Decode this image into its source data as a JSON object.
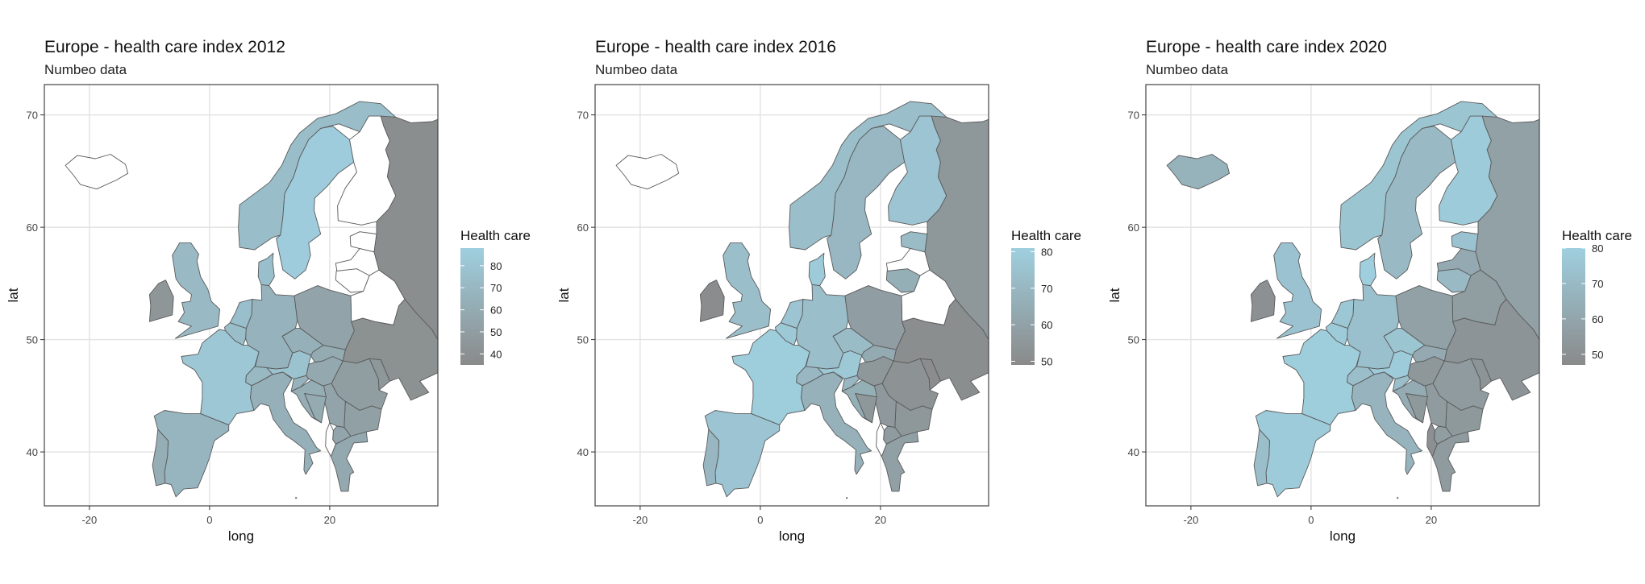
{
  "colors": {
    "high": "#9fcfdf",
    "low": "#8a8a8a",
    "border": "#555555",
    "missing": "#ffffff",
    "grid": "#e3e3e3",
    "panel_border": "#444444"
  },
  "axes": {
    "xlabel": "long",
    "ylabel": "lat",
    "xticks": [
      "-20",
      "0",
      "20"
    ],
    "yticks": [
      "40",
      "50",
      "60",
      "70"
    ]
  },
  "legend_title": "Health care",
  "panels": [
    {
      "title": "Europe - health care index 2012",
      "subtitle": "Numbeo data",
      "legend_ticks": [
        "80",
        "70",
        "60",
        "50",
        "40"
      ],
      "range": [
        35,
        88
      ],
      "values": {
        "Norway": 74,
        "Sweden": 86,
        "Finland": null,
        "Russia": 38,
        "Estonia": null,
        "Latvia": null,
        "Lithuania": null,
        "Belarus": null,
        "Poland": 55,
        "Ukraine": 40,
        "Germany": 66,
        "Denmark": 76,
        "UK": 72,
        "Ireland": 44,
        "France": 82,
        "Spain": 68,
        "Portugal": 62,
        "Italy": 64,
        "Switzerland": 70,
        "Austria": 78,
        "Czechia": 64,
        "Slovakia": 60,
        "Hungary": 58,
        "Romania": 50,
        "Bulgaria": 52,
        "Greece": 58,
        "Croatia": 62,
        "Serbia": 55,
        "Bosnia": 60,
        "Albania": null,
        "Macedonia": 56,
        "Belgium": 74,
        "Netherlands": 76,
        "Slovenia": 66,
        "Moldova": 45,
        "Iceland": null
      }
    },
    {
      "title": "Europe - health care index 2016",
      "subtitle": "Numbeo data",
      "legend_ticks": [
        "80",
        "70",
        "60",
        "50"
      ],
      "range": [
        49,
        81
      ],
      "values": {
        "Norway": 73,
        "Sweden": 70,
        "Finland": 76,
        "Russia": 55,
        "Estonia": 72,
        "Latvia": null,
        "Lithuania": 66,
        "Belarus": null,
        "Poland": 58,
        "Ukraine": 51,
        "Germany": 73,
        "Denmark": 79,
        "UK": 73,
        "Ireland": 50,
        "France": 80,
        "Spain": 76,
        "Portugal": 70,
        "Italy": 67,
        "Switzerland": 70,
        "Austria": 78,
        "Czechia": 72,
        "Slovakia": 64,
        "Hungary": 55,
        "Romania": 53,
        "Bulgaria": 55,
        "Greece": 59,
        "Croatia": 66,
        "Serbia": 56,
        "Bosnia": 55,
        "Albania": null,
        "Macedonia": 57,
        "Belgium": 78,
        "Netherlands": 76,
        "Slovenia": 70,
        "Moldova": 50,
        "Iceland": null
      }
    },
    {
      "title": "Europe - health care index 2020",
      "subtitle": "Numbeo data",
      "legend_ticks": [
        "80",
        "70",
        "60",
        "50"
      ],
      "range": [
        47,
        80
      ],
      "values": {
        "Norway": 75,
        "Sweden": 70,
        "Finland": 78,
        "Russia": 58,
        "Estonia": 74,
        "Latvia": 62,
        "Lithuania": 70,
        "Belarus": 56,
        "Poland": 58,
        "Ukraine": 52,
        "Germany": 73,
        "Denmark": 80,
        "UK": 74,
        "Ireland": 50,
        "France": 79,
        "Spain": 78,
        "Portugal": 72,
        "Italy": 67,
        "Switzerland": 72,
        "Austria": 78,
        "Czechia": 75,
        "Slovakia": 62,
        "Hungary": 53,
        "Romania": 55,
        "Bulgaria": 54,
        "Greece": 55,
        "Croatia": 63,
        "Serbia": 55,
        "Bosnia": 54,
        "Albania": 50,
        "Macedonia": 56,
        "Belgium": 78,
        "Netherlands": 76,
        "Slovenia": 72,
        "Moldova": 52,
        "Iceland": 66
      }
    }
  ]
}
